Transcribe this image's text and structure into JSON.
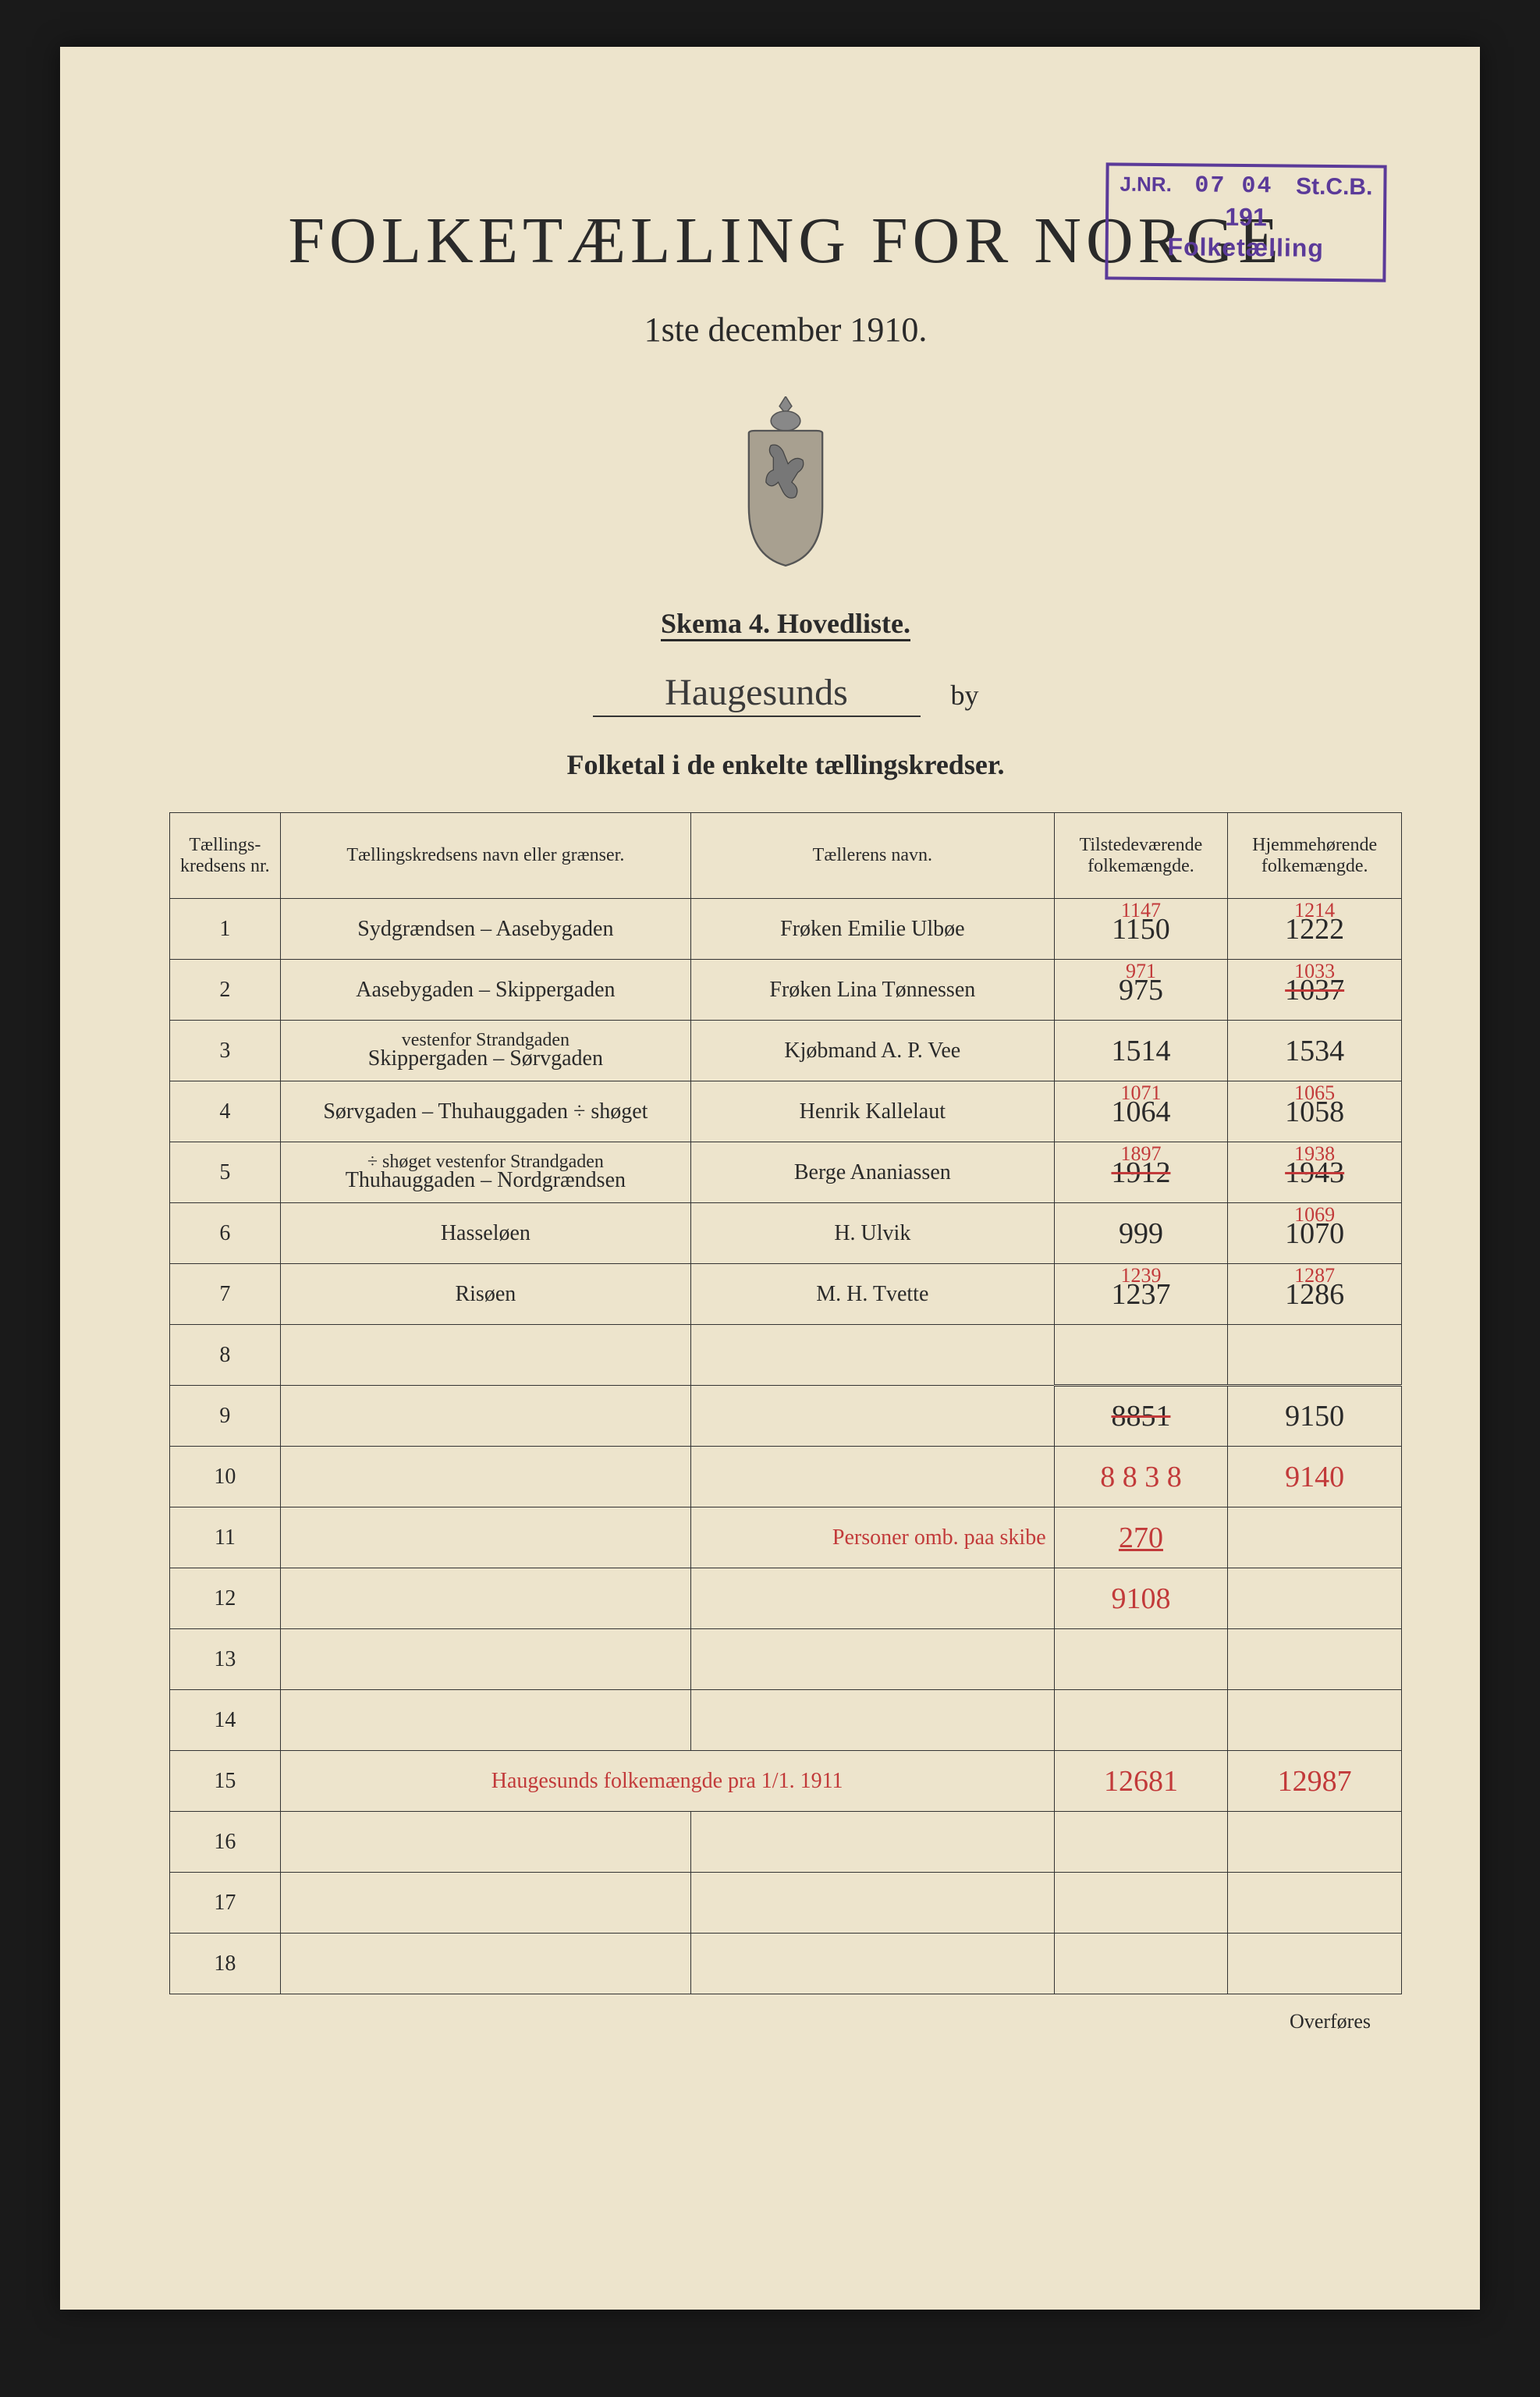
{
  "stamp": {
    "jnr_label": "J.NR.",
    "jnr_num": "07 04",
    "stcb": "St.C.B.",
    "year": "191",
    "bottom": "Folketælling"
  },
  "header": {
    "title": "FOLKETÆLLING FOR NORGE",
    "subtitle": "1ste december 1910.",
    "schema": "Skema 4.   Hovedliste.",
    "city": "Haugesunds",
    "by_label": "by",
    "folketal": "Folketal i de enkelte tællingskredser."
  },
  "columns": {
    "nr": "Tællings-kredsens nr.",
    "navn": "Tællingskredsens navn eller grænser.",
    "taeller": "Tællerens navn.",
    "tilst": "Tilstedeværende folkemængde.",
    "hjem": "Hjemmehørende folkemængde."
  },
  "rows": [
    {
      "n": "1",
      "navn": "Sydgrændsen – Aasebygaden",
      "taeller": "Frøken Emilie Ulbøe",
      "t_red": "1147",
      "t_black": "1150",
      "h_red": "1214",
      "h_black": "1222"
    },
    {
      "n": "2",
      "navn": "Aasebygaden – Skippergaden",
      "taeller": "Frøken Lina Tønnessen",
      "t_red": "971",
      "t_black": "975",
      "h_red": "1033",
      "h_black": "1037",
      "h_strike": true
    },
    {
      "n": "3",
      "navn": "Skippergaden – Sørvgaden",
      "navn_sub": "vestenfor Strandgaden",
      "taeller": "Kjøbmand A. P. Vee",
      "t_red": "",
      "t_black": "1514",
      "h_red": "",
      "h_black": "1534"
    },
    {
      "n": "4",
      "navn": "Sørvgaden – Thuhauggaden ÷ shøget",
      "taeller": "Henrik Kallelaut",
      "t_red": "1071",
      "t_black": "1064",
      "h_red": "1065",
      "h_black": "1058"
    },
    {
      "n": "5",
      "navn_sub": "÷ shøget vestenfor Strandgaden",
      "navn": "Thuhauggaden – Nordgrændsen",
      "taeller": "Berge Ananiassen",
      "t_red": "1897",
      "t_black": "1912",
      "t_strike": true,
      "h_red": "1938",
      "h_black": "1943",
      "h_strike": true
    },
    {
      "n": "6",
      "navn": "Hasseløen",
      "taeller": "H. Ulvik",
      "t_red": "",
      "t_black": "999",
      "h_red": "1069",
      "h_black": "1070"
    },
    {
      "n": "7",
      "navn": "Risøen",
      "taeller": "M. H. Tvette",
      "t_red": "1239",
      "t_black": "1237",
      "h_red": "1287",
      "h_black": "1286"
    },
    {
      "n": "8"
    },
    {
      "n": "9",
      "t_black": "8851",
      "t_strike": true,
      "h_black": "9150",
      "sum": true
    },
    {
      "n": "10",
      "t_red_big": "8 8 3 8",
      "h_red_big": "9140"
    },
    {
      "n": "11",
      "taeller_red": "Personer omb. paa skibe",
      "t_red_big": "270",
      "t_underline": true
    },
    {
      "n": "12",
      "t_red_big": "9108"
    },
    {
      "n": "13"
    },
    {
      "n": "14"
    },
    {
      "n": "15",
      "navn_red_full": "Haugesunds folkemængde pra 1/1. 1911",
      "t_red_big": "12681",
      "h_red_big": "12987"
    },
    {
      "n": "16"
    },
    {
      "n": "17"
    },
    {
      "n": "18"
    }
  ],
  "footer": {
    "overfores": "Overføres"
  },
  "colors": {
    "paper": "#ede4cc",
    "ink": "#2a2a2a",
    "red_ink": "#c23a3a",
    "stamp": "#5b3a99",
    "bg": "#1a1a1a"
  }
}
